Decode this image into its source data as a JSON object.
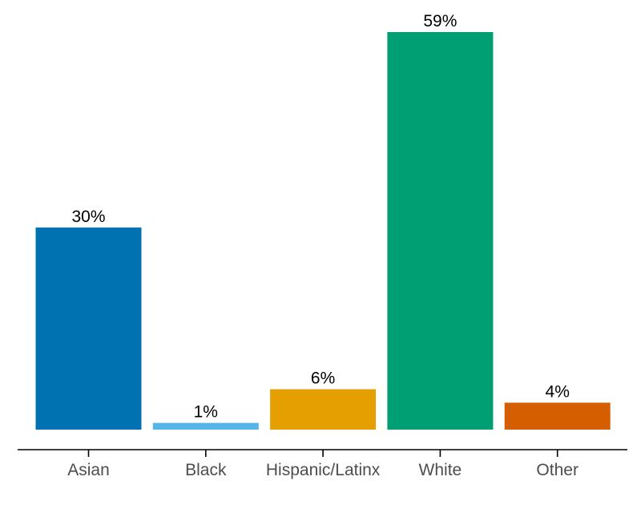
{
  "chart_data": {
    "type": "bar",
    "categories": [
      "Asian",
      "Black",
      "Hispanic/Latinx",
      "White",
      "Other"
    ],
    "values": [
      30,
      1,
      6,
      59,
      4
    ],
    "data_labels": [
      "30%",
      "1%",
      "6%",
      "59%",
      "4%"
    ],
    "colors": [
      "#0072B2",
      "#56B4E9",
      "#E69F00",
      "#009E73",
      "#D55E00"
    ],
    "ylim": [
      0,
      59
    ],
    "y_axis_visible": false,
    "grid": false,
    "legend": "none"
  }
}
